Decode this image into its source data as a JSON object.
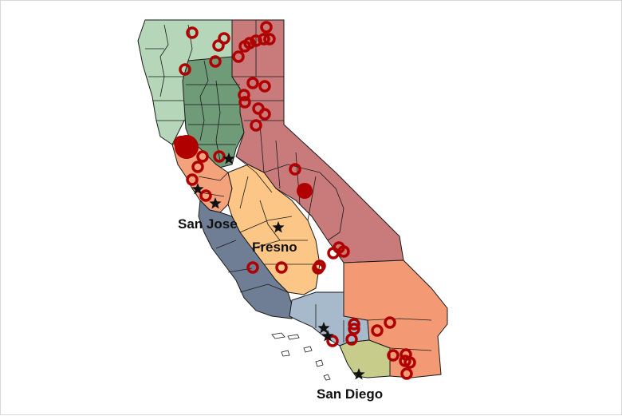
{
  "map": {
    "cities": [
      {
        "name": "San Jose",
        "label": "San Jose"
      },
      {
        "name": "Fresno",
        "label": "Fresno"
      },
      {
        "name": "San Diego",
        "label": "San Diego"
      }
    ],
    "colors": {
      "north_light_green": "#b5d6b8",
      "sacramento_green": "#6f9b78",
      "northeast_red": "#c97a7a",
      "bay_salmon": "#f3a27c",
      "central_valley_orange": "#fbc686",
      "central_coast_slate": "#6f7e94",
      "la_blue": "#a7bacb",
      "inland_empire_orange": "#f39a74",
      "san_diego_olive": "#c8cc8a",
      "marker_red": "#b00000",
      "star_black": "#111111"
    },
    "legend": "none"
  }
}
